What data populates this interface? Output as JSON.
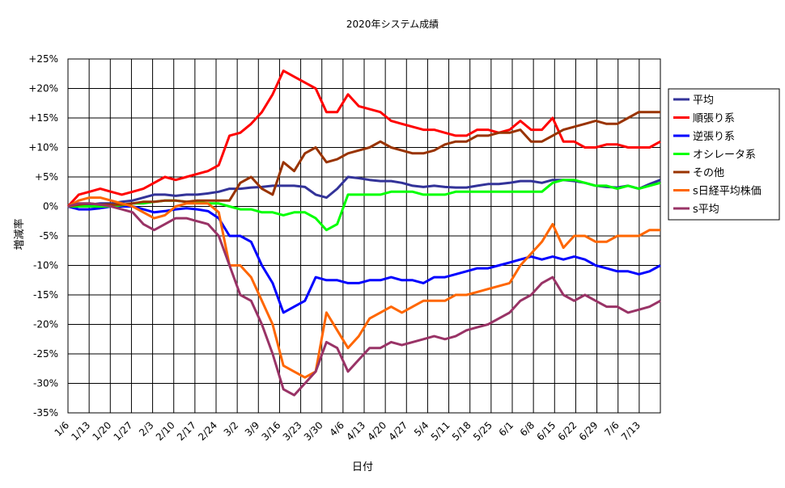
{
  "chart_data": {
    "type": "line",
    "title": "2020年システム成績",
    "xlabel": "日付",
    "ylabel": "増減率",
    "ylim": [
      -35,
      25
    ],
    "y_tick_labels": [
      "+25%",
      "+20%",
      "+15%",
      "+10%",
      "+5%",
      "0%",
      "-5%",
      "-10%",
      "-15%",
      "-20%",
      "-25%",
      "-30%",
      "-35%"
    ],
    "y_tick_values": [
      25,
      20,
      15,
      10,
      5,
      0,
      -5,
      -10,
      -15,
      -20,
      -25,
      -30,
      -35
    ],
    "x_tick_labels": [
      "1/6",
      "1/13",
      "1/20",
      "1/27",
      "2/3",
      "2/10",
      "2/17",
      "2/24",
      "3/2",
      "3/9",
      "3/16",
      "3/23",
      "3/30",
      "4/6",
      "4/13",
      "4/20",
      "4/27",
      "5/4",
      "5/11",
      "5/18",
      "5/25",
      "6/1",
      "6/8",
      "6/15",
      "6/22",
      "6/29",
      "7/6",
      "7/13"
    ],
    "grid": true,
    "legend_position": "right",
    "x": [
      "1/6",
      "1/9",
      "1/13",
      "1/16",
      "1/20",
      "1/23",
      "1/27",
      "1/30",
      "2/3",
      "2/6",
      "2/10",
      "2/13",
      "2/17",
      "2/20",
      "2/24",
      "2/27",
      "3/2",
      "3/5",
      "3/9",
      "3/12",
      "3/16",
      "3/19",
      "3/23",
      "3/26",
      "3/30",
      "4/2",
      "4/6",
      "4/9",
      "4/13",
      "4/16",
      "4/20",
      "4/23",
      "4/27",
      "4/30",
      "5/4",
      "5/7",
      "5/11",
      "5/14",
      "5/18",
      "5/21",
      "5/25",
      "5/28",
      "6/1",
      "6/4",
      "6/8",
      "6/11",
      "6/15",
      "6/18",
      "6/22",
      "6/25",
      "6/29",
      "7/2",
      "7/6",
      "7/9",
      "7/13",
      "7/16"
    ],
    "series": [
      {
        "name": "平均",
        "color": "#333399",
        "values": [
          0,
          0,
          0.3,
          0.5,
          0.5,
          0.8,
          1,
          1.5,
          2,
          2,
          1.8,
          2,
          2,
          2.2,
          2.5,
          3,
          3,
          3.2,
          3.3,
          3.5,
          3.5,
          3.5,
          3.3,
          2,
          1.5,
          3,
          5,
          4.8,
          4.5,
          4.3,
          4.3,
          4,
          3.5,
          3.3,
          3.5,
          3.3,
          3.2,
          3.2,
          3.5,
          3.8,
          3.8,
          4,
          4.3,
          4.3,
          4,
          4.5,
          4.5,
          4.3,
          4,
          3.5,
          3.3,
          3.2,
          3.5,
          3,
          3.8,
          4.5
        ]
      },
      {
        "name": "順張り系",
        "color": "#ff0000",
        "values": [
          0,
          2,
          2.5,
          3,
          2.5,
          2,
          2.5,
          3,
          4,
          5,
          4.5,
          5,
          5.5,
          6,
          7,
          12,
          12.5,
          14,
          16,
          19,
          23,
          22,
          21,
          20,
          16,
          16,
          19,
          17,
          16.5,
          16,
          14.5,
          14,
          13.5,
          13,
          13,
          12.5,
          12,
          12,
          13,
          13,
          12.5,
          13,
          14.5,
          13,
          13,
          15,
          11,
          11,
          10,
          10,
          10.5,
          10.5,
          10,
          10,
          10,
          11
        ]
      },
      {
        "name": "逆張り系",
        "color": "#0000ff",
        "values": [
          0,
          -0.5,
          -0.5,
          -0.3,
          0,
          0,
          0,
          -0.5,
          -1,
          -0.8,
          -0.5,
          -0.3,
          -0.5,
          -0.8,
          -2,
          -5,
          -5,
          -6,
          -10,
          -13,
          -18,
          -17,
          -16,
          -12,
          -12.5,
          -12.5,
          -13,
          -13,
          -12.5,
          -12.5,
          -12,
          -12.5,
          -12.5,
          -13,
          -12,
          -12,
          -11.5,
          -11,
          -10.5,
          -10.5,
          -10,
          -9.5,
          -9,
          -8.5,
          -9,
          -8.5,
          -9,
          -8.5,
          -9,
          -10,
          -10.5,
          -11,
          -11,
          -11.5,
          -11,
          -10
        ]
      },
      {
        "name": "オシレータ系",
        "color": "#00ff00",
        "values": [
          0,
          0,
          0,
          0,
          0,
          0.2,
          0.5,
          0.5,
          0.8,
          1,
          1,
          0.8,
          0.8,
          0.5,
          0.5,
          0,
          -0.5,
          -0.5,
          -1,
          -1,
          -1.5,
          -1,
          -1,
          -2,
          -4,
          -3,
          2,
          2,
          2,
          2,
          2.5,
          2.5,
          2.5,
          2,
          2,
          2,
          2.5,
          2.5,
          2.5,
          2.5,
          2.5,
          2.5,
          2.5,
          2.5,
          2.5,
          4,
          4.5,
          4.5,
          4,
          3.5,
          3.5,
          3,
          3.5,
          3,
          3.5,
          4
        ]
      },
      {
        "name": "その他",
        "color": "#993300",
        "values": [
          0,
          0.3,
          0.5,
          0.3,
          0.3,
          0.3,
          0.5,
          0.8,
          0.8,
          1,
          1,
          0.8,
          1,
          1,
          1,
          1,
          4,
          5,
          3,
          2,
          7.5,
          6,
          9,
          10,
          7.5,
          8,
          9,
          9.5,
          10,
          11,
          10,
          9.5,
          9,
          9,
          9.5,
          10.5,
          11,
          11,
          12,
          12,
          12.5,
          12.5,
          13,
          11,
          11,
          12,
          13,
          13.5,
          14,
          14.5,
          14,
          14,
          15,
          16,
          16,
          16
        ]
      },
      {
        "name": "s日経平均株価",
        "color": "#ff6600",
        "values": [
          0,
          1,
          1.5,
          1.5,
          1,
          0.5,
          0,
          -1,
          -2,
          -1.5,
          0,
          0.5,
          0.5,
          0.5,
          -1,
          -10,
          -10,
          -12,
          -16,
          -20,
          -27,
          -28,
          -29,
          -28,
          -18,
          -21,
          -24,
          -22,
          -19,
          -18,
          -17,
          -18,
          -17,
          -16,
          -16,
          -16,
          -15,
          -15,
          -14.5,
          -14,
          -13.5,
          -13,
          -10,
          -8,
          -6,
          -3,
          -7,
          -5,
          -5,
          -6,
          -6,
          -5,
          -5,
          -5,
          -4,
          -4
        ]
      },
      {
        "name": "s平均",
        "color": "#993366",
        "values": [
          0,
          0.5,
          0.5,
          0.3,
          0,
          -0.5,
          -1,
          -3,
          -4,
          -3,
          -2,
          -2,
          -2.5,
          -3,
          -5,
          -10,
          -15,
          -16,
          -20,
          -25,
          -31,
          -32,
          -30,
          -28,
          -23,
          -24,
          -28,
          -26,
          -24,
          -24,
          -23,
          -23.5,
          -23,
          -22.5,
          -22,
          -22.5,
          -22,
          -21,
          -20.5,
          -20,
          -19,
          -18,
          -16,
          -15,
          -13,
          -12,
          -15,
          -16,
          -15,
          -16,
          -17,
          -17,
          -18,
          -17.5,
          -17,
          -16
        ]
      }
    ]
  }
}
